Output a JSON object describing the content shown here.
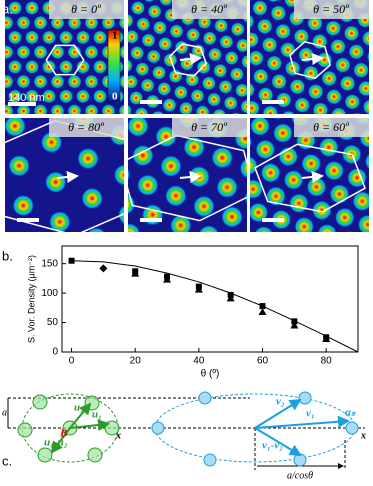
{
  "labels": {
    "a": "a.",
    "b": "b.",
    "c": "c."
  },
  "panel_a": {
    "titles": [
      "θ = 0º",
      "θ = 40º",
      "θ = 50º",
      "θ = 80º",
      "θ = 70º",
      "θ = 60º"
    ],
    "colorbar_max": "1",
    "colorbar_min": "0",
    "scale": "140 nm"
  },
  "chart_data": {
    "type": "scatter",
    "xlabel": "θ (º)",
    "ylabel": "S. Vor. Density (μm⁻²)",
    "xlim": [
      -3,
      90
    ],
    "ylim": [
      0,
      180
    ],
    "xticks": [
      0,
      20,
      40,
      60,
      80
    ],
    "yticks": [
      0,
      50,
      100,
      150
    ],
    "series": [
      {
        "marker": "line",
        "color": "#000000",
        "x": [
          0,
          10,
          20,
          30,
          40,
          50,
          60,
          70,
          80,
          90
        ],
        "values": [
          155,
          153,
          146,
          134,
          119,
          100,
          78,
          53,
          27,
          0
        ]
      },
      {
        "marker": "square",
        "color": "#000000",
        "x": [
          0,
          20,
          30,
          40,
          50,
          60,
          70,
          80
        ],
        "values": [
          155,
          137,
          128,
          111,
          97,
          78,
          52,
          25
        ]
      },
      {
        "marker": "triangle",
        "color": "#000000",
        "x": [
          20,
          30,
          40,
          50,
          60,
          70,
          80
        ],
        "values": [
          133,
          123,
          106,
          91,
          68,
          45,
          22
        ]
      },
      {
        "marker": "diamond",
        "color": "#000000",
        "x": [
          10
        ],
        "values": [
          142
        ]
      }
    ]
  },
  "panel_c": {
    "a": "a",
    "B": "B",
    "u2": "u₂",
    "u1": "u₁",
    "alpha": "α",
    "u1u2": "u₁-u₂",
    "x1": "x",
    "v2": "v₂",
    "v1": "v₁",
    "alphas": "αₛ",
    "v1v2": "v₁-v₂",
    "x2": "x",
    "acos": "a/cosθ"
  }
}
